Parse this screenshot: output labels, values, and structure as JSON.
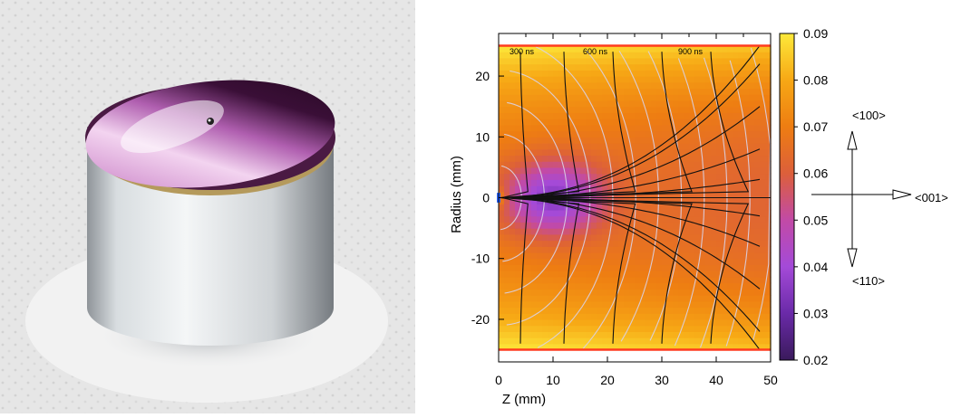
{
  "chart_data": {
    "type": "heatmap",
    "xlabel": "Z (mm)",
    "ylabel": "Radius (mm)",
    "xlim": [
      0,
      50
    ],
    "ylim": [
      -27,
      27
    ],
    "x_ticks": [
      0,
      10,
      20,
      30,
      40,
      50
    ],
    "y_ticks": [
      20,
      10,
      0,
      -10,
      -20
    ],
    "colorbar": {
      "range": [
        0.02,
        0.09
      ],
      "ticks": [
        "0.09",
        "0.08",
        "0.07",
        "0.06",
        "0.05",
        "0.04",
        "0.03",
        "0.02"
      ],
      "colors": [
        "#3a1a5c",
        "#6a2aa8",
        "#a44ad8",
        "#c24aa6",
        "#dc5f3b",
        "#ee7d12",
        "#f7a815",
        "#fde93a"
      ]
    },
    "time_labels": [
      {
        "label": "300 ns",
        "z": 2
      },
      {
        "label": "600 ns",
        "z": 15.5
      },
      {
        "label": "900 ns",
        "z": 33
      }
    ],
    "detector_radius_mm": 25,
    "crystal_axes": {
      "up": "<100>",
      "right": "<001>",
      "down": "<110>"
    }
  },
  "photo": {
    "subject": "cylindrical germanium detector crystal with reflective top face"
  }
}
